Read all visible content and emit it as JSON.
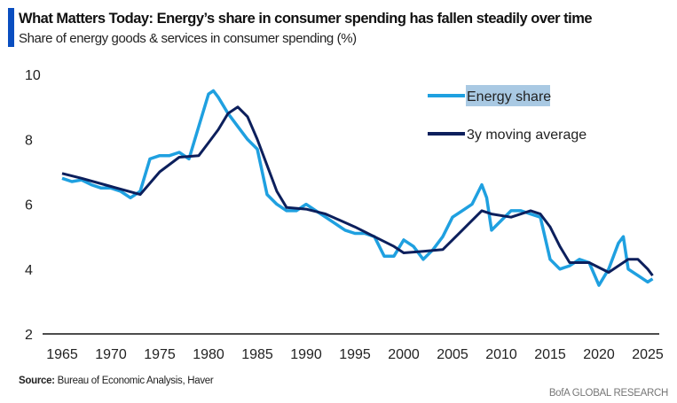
{
  "title": "What Matters Today: Energy’s share in consumer spending has fallen steadily over time",
  "subtitle": "Share of energy goods & services in consumer spending (%)",
  "source_label": "Source:",
  "source_text": "Bureau of Economic Analysis, Haver",
  "brand": "BofA GLOBAL RESEARCH",
  "colors": {
    "accent": "#0a4ec0",
    "energy": "#1fa0e0",
    "average": "#0c1f5c",
    "highlight": "#a9c9e3"
  },
  "chart_data": {
    "type": "line",
    "title": "What Matters Today: Energy’s share in consumer spending has fallen steadily over time",
    "ylabel": "Share of energy goods & services in consumer spending (%)",
    "xlim": [
      1965,
      2026
    ],
    "ylim": [
      2,
      10
    ],
    "yticks": [
      "2",
      "4",
      "6",
      "8",
      "10"
    ],
    "xticks": [
      "1965",
      "1970",
      "1975",
      "1980",
      "1985",
      "1990",
      "1995",
      "2000",
      "2005",
      "2010",
      "2015",
      "2020",
      "2025"
    ],
    "legend_position": "top-right",
    "series": [
      {
        "name": "Energy share",
        "x": [
          1965,
          1966,
          1967,
          1968,
          1969,
          1970,
          1971,
          1972,
          1973,
          1974,
          1975,
          1976,
          1977,
          1978,
          1979,
          1980,
          1980.5,
          1981,
          1982,
          1983,
          1984,
          1985,
          1986,
          1987,
          1988,
          1989,
          1990,
          1991,
          1992,
          1993,
          1994,
          1995,
          1996,
          1997,
          1998,
          1999,
          2000,
          2001,
          2002,
          2003,
          2004,
          2005,
          2006,
          2007,
          2008,
          2008.5,
          2009,
          2010,
          2011,
          2012,
          2013,
          2014,
          2015,
          2016,
          2017,
          2018,
          2019,
          2020,
          2021,
          2022,
          2022.5,
          2023,
          2024,
          2025,
          2025.5
        ],
        "y": [
          6.8,
          6.7,
          6.75,
          6.6,
          6.5,
          6.5,
          6.4,
          6.2,
          6.4,
          7.4,
          7.5,
          7.5,
          7.6,
          7.4,
          8.4,
          9.4,
          9.5,
          9.3,
          8.8,
          8.4,
          8.0,
          7.7,
          6.3,
          6.0,
          5.8,
          5.8,
          6.0,
          5.8,
          5.6,
          5.4,
          5.2,
          5.1,
          5.1,
          5.0,
          4.4,
          4.4,
          4.9,
          4.7,
          4.3,
          4.6,
          5.0,
          5.6,
          5.8,
          6.0,
          6.6,
          6.2,
          5.2,
          5.5,
          5.8,
          5.8,
          5.7,
          5.6,
          4.3,
          4.0,
          4.1,
          4.3,
          4.2,
          3.5,
          4.0,
          4.8,
          5.0,
          4.0,
          3.8,
          3.6,
          3.7
        ]
      },
      {
        "name": "3y moving average",
        "x": [
          1965,
          1967,
          1970,
          1973,
          1975,
          1977,
          1979,
          1980,
          1981,
          1982,
          1983,
          1984,
          1985,
          1986,
          1987,
          1988,
          1990,
          1992,
          1995,
          1997,
          1999,
          2000,
          2002,
          2004,
          2006,
          2008,
          2009,
          2011,
          2013,
          2014,
          2015,
          2016,
          2017,
          2019,
          2021,
          2023,
          2024,
          2025,
          2025.5
        ],
        "y": [
          6.95,
          6.8,
          6.55,
          6.3,
          7.0,
          7.45,
          7.5,
          7.9,
          8.3,
          8.8,
          9.0,
          8.7,
          8.0,
          7.2,
          6.4,
          5.9,
          5.85,
          5.7,
          5.3,
          5.0,
          4.7,
          4.5,
          4.55,
          4.6,
          5.2,
          5.8,
          5.7,
          5.6,
          5.8,
          5.7,
          5.3,
          4.7,
          4.2,
          4.2,
          3.9,
          4.3,
          4.3,
          4.0,
          3.8
        ]
      }
    ]
  }
}
